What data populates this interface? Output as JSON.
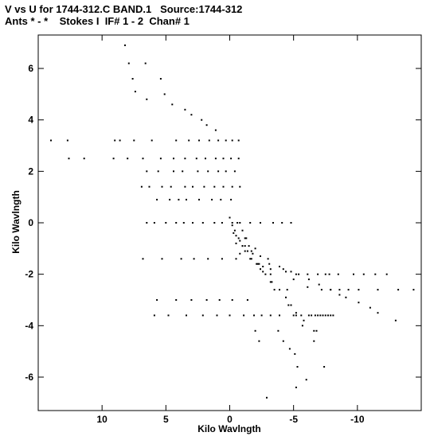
{
  "header": {
    "line1": "V vs U for 1744-312.C BAND.1   Source:1744-312",
    "line2": "Ants * - *    Stokes I  IF# 1 - 2  Chan# 1"
  },
  "chart_data": {
    "type": "scatter",
    "title": "V vs U for 1744-312.C BAND.1   Source:1744-312",
    "subtitle": "Ants * - *    Stokes I  IF# 1 - 2  Chan# 1",
    "xlabel": "Kilo Wavlngth",
    "ylabel": "Kilo Wavlngth",
    "xlim": [
      15,
      -15
    ],
    "ylim": [
      -7.3,
      7.3
    ],
    "x_ticks": [
      10,
      5,
      0,
      -5,
      -10
    ],
    "y_ticks": [
      6,
      4,
      2,
      0,
      -2,
      -4,
      -6
    ],
    "x_tick_labels": [
      "10",
      "5",
      "0",
      "-5",
      "-10"
    ],
    "y_tick_labels": [
      "6",
      "4",
      "2",
      "0",
      "-2",
      "-4",
      "-6"
    ],
    "grid": false,
    "legend": "none",
    "point_color": "#000000",
    "series": [
      {
        "x": [
          14.0,
          12.7,
          8.2,
          7.9,
          6.6,
          7.6,
          5.4,
          7.4,
          5.1,
          6.5,
          4.5,
          3.5,
          3.0,
          2.2,
          1.8,
          1.1,
          8.6,
          9.0,
          7.5,
          6.1,
          4.2,
          3.2,
          2.4,
          1.6,
          0.9,
          0.3,
          -0.2,
          -0.7,
          12.6,
          11.4,
          9.1,
          8.0,
          6.8,
          5.4,
          4.4,
          3.5,
          2.6,
          1.9,
          1.1,
          0.5,
          -0.1,
          -0.7,
          6.5,
          5.6,
          4.4,
          3.7,
          2.5,
          1.7,
          0.9,
          0.3,
          -0.4,
          6.9,
          6.3,
          5.3,
          4.6,
          3.5,
          2.9,
          2.0,
          1.2,
          0.5,
          -0.2,
          -0.8,
          5.7,
          4.7,
          4.0,
          3.4,
          2.4,
          1.4,
          0.7,
          -0.1,
          6.5,
          5.9,
          5.0,
          4.2,
          3.6,
          2.9,
          2.1,
          1.2,
          0.6,
          -0.2,
          -0.8,
          -1.6,
          -2.4,
          -3.4,
          -4.1,
          -4.8,
          0.0,
          -0.2,
          -0.4,
          -0.5,
          -0.8,
          -1.0,
          -1.2,
          -2.6,
          -3.2,
          -4.5,
          -6.2,
          -6.8,
          -0.6,
          -1.0,
          -1.3,
          -1.5,
          -1.8,
          -2.3,
          -2.6,
          -3.2,
          -3.5,
          -4.6,
          -5.2,
          -5.7,
          -6.6,
          -7.4,
          -0.3,
          -0.7,
          -1.0,
          -1.4,
          -1.7,
          -2.1,
          -2.4,
          -2.8,
          -3.3,
          -3.9,
          -4.4,
          -4.8,
          -5.2,
          -5.8,
          -6.6,
          -0.5,
          -1.2,
          -1.7,
          -2.4,
          -3.1,
          -3.9,
          -4.8,
          -5.4,
          -6.2,
          -7.0,
          -7.9,
          -8.6,
          -9.1,
          -10.1,
          -11.0,
          -11.6,
          -13.0,
          -0.8,
          -1.6,
          -2.2,
          -3.2,
          -4.4,
          -5.2,
          -6.1,
          -6.9,
          -7.5,
          -7.8,
          -8.5,
          -9.7,
          -10.5,
          -11.4,
          -12.3,
          -1.2,
          -2.0,
          -3.0,
          -4.2,
          -5.0,
          -6.1,
          -7.2,
          -7.9,
          -8.6,
          -9.3,
          -10.1,
          -11.6,
          -13.2,
          -14.4,
          6.8,
          5.3,
          3.8,
          2.8,
          1.7,
          0.6,
          -0.5,
          5.7,
          4.2,
          3.0,
          1.8,
          0.8,
          -0.2,
          -1.4,
          5.9,
          4.8,
          3.4,
          2.1,
          1.0,
          0.0,
          -1.1,
          -1.9,
          -2.5,
          -3.2,
          -3.9,
          -5.0,
          -5.6,
          -6.4,
          -6.7,
          -6.9,
          -7.1,
          -7.3,
          -7.5,
          -7.7,
          -7.9,
          -8.1,
          -2.0,
          -2.3,
          -3.8,
          -4.2,
          -4.7,
          -5.1,
          -5.3,
          -6.0,
          -5.2,
          -2.9
        ],
        "y": [
          3.2,
          3.2,
          6.9,
          6.2,
          6.2,
          5.6,
          5.6,
          5.1,
          5.0,
          4.8,
          4.6,
          4.4,
          4.2,
          4.0,
          3.8,
          3.6,
          3.2,
          3.2,
          3.2,
          3.2,
          3.2,
          3.2,
          3.2,
          3.2,
          3.2,
          3.2,
          3.2,
          3.2,
          2.5,
          2.5,
          2.5,
          2.5,
          2.5,
          2.5,
          2.5,
          2.5,
          2.5,
          2.5,
          2.5,
          2.5,
          2.5,
          2.5,
          2.0,
          2.0,
          2.0,
          2.0,
          2.0,
          2.0,
          2.0,
          2.0,
          2.0,
          1.4,
          1.4,
          1.4,
          1.4,
          1.4,
          1.4,
          1.4,
          1.4,
          1.4,
          1.4,
          1.4,
          0.9,
          0.9,
          0.9,
          0.9,
          0.9,
          0.9,
          0.9,
          0.9,
          0.0,
          0.0,
          0.0,
          0.0,
          0.0,
          0.0,
          0.0,
          0.0,
          0.0,
          0.0,
          0.0,
          0.0,
          0.0,
          0.0,
          0.0,
          0.0,
          0.2,
          -0.1,
          -0.3,
          -0.5,
          -0.7,
          -0.9,
          -1.1,
          -1.7,
          -2.0,
          -2.6,
          -3.6,
          -4.2,
          0.0,
          -0.3,
          -0.6,
          -0.9,
          -1.2,
          -1.6,
          -1.9,
          -2.3,
          -2.6,
          -3.2,
          -3.6,
          -4.0,
          -4.6,
          -5.6,
          -0.4,
          -0.6,
          -0.9,
          -1.1,
          -1.4,
          -1.6,
          -1.8,
          -2.0,
          -2.3,
          -2.6,
          -2.9,
          -3.2,
          -3.5,
          -3.8,
          -4.2,
          -0.8,
          -0.9,
          -1.1,
          -1.3,
          -1.6,
          -1.7,
          -1.9,
          -2.0,
          -2.2,
          -2.4,
          -2.6,
          -2.8,
          -2.9,
          -3.1,
          -3.3,
          -3.5,
          -3.8,
          -1.2,
          -1.4,
          -1.6,
          -1.8,
          -1.9,
          -2.0,
          -2.0,
          -2.0,
          -2.0,
          -2.0,
          -2.0,
          -2.0,
          -2.0,
          -2.0,
          -2.0,
          -0.6,
          -1.0,
          -1.4,
          -1.8,
          -2.2,
          -2.5,
          -2.6,
          -2.6,
          -2.6,
          -2.6,
          -2.6,
          -2.6,
          -2.6,
          -2.6,
          -1.4,
          -1.4,
          -1.4,
          -1.4,
          -1.4,
          -1.4,
          -1.4,
          -3.0,
          -3.0,
          -3.0,
          -3.0,
          -3.0,
          -3.0,
          -3.0,
          -3.6,
          -3.6,
          -3.6,
          -3.6,
          -3.6,
          -3.6,
          -3.6,
          -3.6,
          -3.6,
          -3.6,
          -3.6,
          -3.6,
          -3.6,
          -3.6,
          -3.6,
          -3.6,
          -3.6,
          -3.6,
          -3.6,
          -3.6,
          -3.6,
          -3.6,
          -4.2,
          -4.6,
          -4.2,
          -4.6,
          -4.9,
          -5.1,
          -5.6,
          -6.1,
          -6.4,
          -6.8
        ]
      }
    ]
  }
}
